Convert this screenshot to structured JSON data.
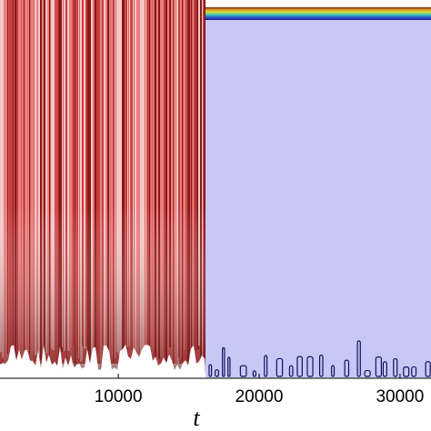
{
  "chart_data": {
    "type": "spacetime",
    "xlabel": "t",
    "xlim": [
      1600,
      32200
    ],
    "xticks": [
      10000,
      20000,
      30000
    ]
  }
}
